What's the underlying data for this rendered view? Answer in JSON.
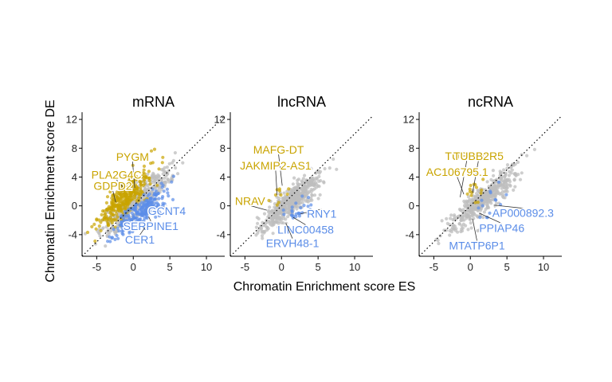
{
  "colors": {
    "up": "#C9A400",
    "down": "#5B8DE8",
    "neutral": "#BDBDBD",
    "diagonal": "#000000"
  },
  "chart_data": {
    "type": "scatter",
    "xlabel": "Chromatin Enrichment score ES",
    "ylabel": "Chromatin Enrichment score DE",
    "xlim": [
      -7,
      12.5
    ],
    "ylim": [
      -7,
      13
    ],
    "xticks": [
      -5,
      0,
      5,
      10
    ],
    "yticks": [
      -4,
      0,
      4,
      8,
      12
    ],
    "xtick_labels": [
      "-5",
      "0",
      "5",
      "10"
    ],
    "ytick_labels": [
      "-4",
      "0",
      "4",
      "8",
      "12"
    ],
    "panels": [
      {
        "title": "mRNA",
        "clouds": [
          {
            "group": "neutral",
            "cx": 0.5,
            "cy": 0.5,
            "sx": 2.4,
            "sy": 2.4,
            "rho": 0.9,
            "n": 380
          },
          {
            "group": "up",
            "cx": -1.3,
            "cy": 0.9,
            "sx": 1.7,
            "sy": 1.9,
            "rho": 0.8,
            "n": 330
          },
          {
            "group": "down",
            "cx": 1.3,
            "cy": -0.7,
            "sx": 1.7,
            "sy": 1.6,
            "rho": 0.8,
            "n": 230
          }
        ],
        "labels": [
          {
            "text": "PYGM",
            "group": "up",
            "x": -0.1,
            "y": 6.8,
            "tx": 0.2,
            "ty": 2.5
          },
          {
            "text": "PLA2G4C",
            "group": "up",
            "x": -2.3,
            "y": 4.3,
            "tx": -1.4,
            "ty": 2.6
          },
          {
            "text": "GDPD2",
            "group": "up",
            "x": -2.8,
            "y": 2.8,
            "tx": -2.4,
            "ty": 0.5
          },
          {
            "text": "GCNT4",
            "group": "down",
            "x": 4.6,
            "y": -0.7,
            "tx": 3.0,
            "ty": -0.6
          },
          {
            "text": "SERPINE1",
            "group": "down",
            "x": 2.4,
            "y": -2.8,
            "tx": 2.1,
            "ty": -1.5
          },
          {
            "text": "CER1",
            "group": "down",
            "x": 0.9,
            "y": -4.7,
            "tx": 1.6,
            "ty": -3.0
          }
        ]
      },
      {
        "title": "lncRNA",
        "clouds": [
          {
            "group": "neutral",
            "cx": 1.2,
            "cy": 0.6,
            "sx": 1.9,
            "sy": 1.9,
            "rho": 0.85,
            "n": 520
          },
          {
            "group": "up",
            "cx": -0.2,
            "cy": 1.4,
            "sx": 0.8,
            "sy": 0.8,
            "rho": 0.5,
            "n": 10
          },
          {
            "group": "down",
            "cx": 2.5,
            "cy": -0.6,
            "sx": 1.3,
            "sy": 1.1,
            "rho": 0.6,
            "n": 25
          }
        ],
        "labels": [
          {
            "text": "MAFG-DT",
            "group": "up",
            "x": -0.4,
            "y": 7.8,
            "tx": 0.1,
            "ty": 2.8
          },
          {
            "text": "JAKMIP2-AS1",
            "group": "up",
            "x": -0.8,
            "y": 5.6,
            "tx": -0.6,
            "ty": 1.5
          },
          {
            "text": "NRAV",
            "group": "up",
            "x": -4.3,
            "y": 0.7,
            "tx": -2.0,
            "ty": -0.6
          },
          {
            "text": "RNY1",
            "group": "down",
            "x": 5.5,
            "y": -1.1,
            "tx": 2.6,
            "ty": -1.1
          },
          {
            "text": "LINC00458",
            "group": "down",
            "x": 3.3,
            "y": -3.3,
            "tx": 1.6,
            "ty": -1.6
          },
          {
            "text": "ERVH48-1",
            "group": "down",
            "x": 1.5,
            "y": -5.2,
            "tx": 0.6,
            "ty": -2.4
          }
        ]
      },
      {
        "title": "ncRNA",
        "clouds": [
          {
            "group": "neutral",
            "cx": 1.8,
            "cy": 1.0,
            "sx": 2.1,
            "sy": 2.0,
            "rho": 0.88,
            "n": 500
          },
          {
            "group": "up",
            "cx": 0.0,
            "cy": 1.5,
            "sx": 0.9,
            "sy": 0.9,
            "rho": 0.5,
            "n": 14
          },
          {
            "group": "down",
            "cx": 2.7,
            "cy": 0.3,
            "sx": 1.5,
            "sy": 1.3,
            "rho": 0.6,
            "n": 14
          }
        ],
        "labels": [
          {
            "text": "TUBB2A",
            "group": "up",
            "x": -0.5,
            "y": 6.9,
            "tx": -1.4,
            "ty": 1.2
          },
          {
            "text": "TUBB2R5",
            "group": "up",
            "x": 1.1,
            "y": 6.9,
            "tx": 0.3,
            "ty": 1.8
          },
          {
            "text": "AC106795.1",
            "group": "up",
            "x": -1.8,
            "y": 4.7,
            "tx": -0.9,
            "ty": 1.6
          },
          {
            "text": "AP000892.3",
            "group": "down",
            "x": 7.2,
            "y": -1.0,
            "tx": 3.2,
            "ty": 0.1
          },
          {
            "text": "PPIAP46",
            "group": "down",
            "x": 4.3,
            "y": -3.1,
            "tx": 1.2,
            "ty": -1.0
          },
          {
            "text": "MTATP6P1",
            "group": "down",
            "x": 0.9,
            "y": -5.5,
            "tx": 0.3,
            "ty": -1.8
          }
        ]
      }
    ]
  }
}
